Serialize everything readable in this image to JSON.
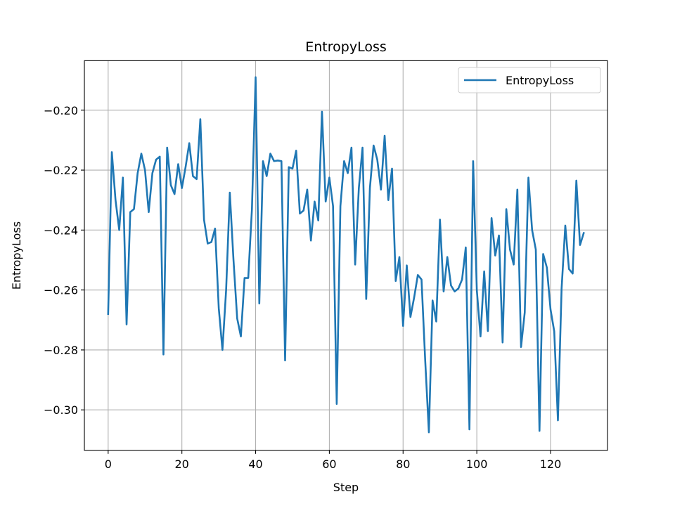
{
  "chart_data": {
    "type": "line",
    "title": "EntropyLoss",
    "xlabel": "Step",
    "ylabel": "EntropyLoss",
    "xlim": [
      -6.45,
      135.45
    ],
    "ylim": [
      -0.3135,
      -0.1835
    ],
    "xticks": [
      0,
      20,
      40,
      60,
      80,
      100,
      120
    ],
    "xtick_labels": [
      "0",
      "20",
      "40",
      "60",
      "80",
      "100",
      "120"
    ],
    "yticks": [
      -0.3,
      -0.28,
      -0.26,
      -0.24,
      -0.22,
      -0.2
    ],
    "ytick_labels": [
      "−0.30",
      "−0.28",
      "−0.26",
      "−0.24",
      "−0.22",
      "−0.20"
    ],
    "grid": true,
    "legend_position": "top-right",
    "series": [
      {
        "name": "EntropyLoss",
        "color": "#1f77b4",
        "x": [
          0,
          1,
          2,
          3,
          4,
          5,
          6,
          7,
          8,
          9,
          10,
          11,
          12,
          13,
          14,
          15,
          16,
          17,
          18,
          19,
          20,
          21,
          22,
          23,
          24,
          25,
          26,
          27,
          28,
          29,
          30,
          31,
          32,
          33,
          34,
          35,
          36,
          37,
          38,
          39,
          40,
          41,
          42,
          43,
          44,
          45,
          46,
          47,
          48,
          49,
          50,
          51,
          52,
          53,
          54,
          55,
          56,
          57,
          58,
          59,
          60,
          61,
          62,
          63,
          64,
          65,
          66,
          67,
          68,
          69,
          70,
          71,
          72,
          73,
          74,
          75,
          76,
          77,
          78,
          79,
          80,
          81,
          82,
          83,
          84,
          85,
          86,
          87,
          88,
          89,
          90,
          91,
          92,
          93,
          94,
          95,
          96,
          97,
          98,
          99,
          100,
          101,
          102,
          103,
          104,
          105,
          106,
          107,
          108,
          109,
          110,
          111,
          112,
          113,
          114,
          115,
          116,
          117,
          118,
          119,
          120,
          121,
          122,
          123,
          124,
          125,
          126,
          127,
          128,
          129
        ],
        "values": [
          -0.268,
          -0.214,
          -0.23,
          -0.24,
          -0.2225,
          -0.2715,
          -0.234,
          -0.233,
          -0.221,
          -0.2145,
          -0.22,
          -0.234,
          -0.221,
          -0.2165,
          -0.2155,
          -0.2815,
          -0.2125,
          -0.225,
          -0.228,
          -0.218,
          -0.226,
          -0.219,
          -0.211,
          -0.222,
          -0.223,
          -0.203,
          -0.2365,
          -0.2445,
          -0.244,
          -0.2395,
          -0.266,
          -0.28,
          -0.26,
          -0.2275,
          -0.25,
          -0.2695,
          -0.2755,
          -0.256,
          -0.256,
          -0.233,
          -0.189,
          -0.2645,
          -0.217,
          -0.222,
          -0.2145,
          -0.217,
          -0.2168,
          -0.217,
          -0.2835,
          -0.219,
          -0.2195,
          -0.2135,
          -0.2345,
          -0.2335,
          -0.2265,
          -0.2435,
          -0.2305,
          -0.2368,
          -0.2005,
          -0.2305,
          -0.2225,
          -0.232,
          -0.298,
          -0.232,
          -0.217,
          -0.221,
          -0.2125,
          -0.2515,
          -0.226,
          -0.2125,
          -0.263,
          -0.226,
          -0.2118,
          -0.2165,
          -0.2265,
          -0.2085,
          -0.23,
          -0.2195,
          -0.257,
          -0.249,
          -0.272,
          -0.2518,
          -0.269,
          -0.2625,
          -0.255,
          -0.2565,
          -0.2835,
          -0.3075,
          -0.2635,
          -0.2705,
          -0.2365,
          -0.2605,
          -0.249,
          -0.2585,
          -0.2605,
          -0.2595,
          -0.2565,
          -0.2458,
          -0.3065,
          -0.217,
          -0.26,
          -0.2755,
          -0.2538,
          -0.2737,
          -0.236,
          -0.2485,
          -0.2418,
          -0.2775,
          -0.233,
          -0.2465,
          -0.2515,
          -0.2265,
          -0.279,
          -0.2675,
          -0.2225,
          -0.24,
          -0.2465,
          -0.307,
          -0.248,
          -0.2525,
          -0.2665,
          -0.2738,
          -0.3035,
          -0.2595,
          -0.2385,
          -0.253,
          -0.2545,
          -0.2235,
          -0.245,
          -0.241
        ]
      }
    ]
  }
}
